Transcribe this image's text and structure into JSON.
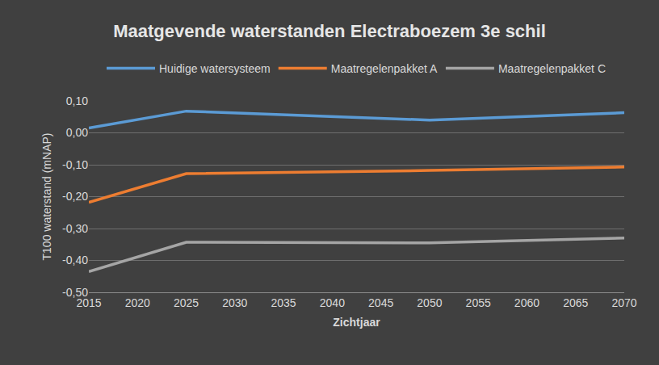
{
  "chart_data": {
    "type": "line",
    "title": "Maatgevende waterstanden Electraboezem 3e schil",
    "x_label": "Zichtjaar",
    "y_label": "T100 waterstand (mNAP)",
    "x": [
      2015,
      2025,
      2050,
      2070
    ],
    "series": [
      {
        "name": "Huidige watersysteem",
        "color": "#5b9bd5",
        "values": [
          0.015,
          0.068,
          0.04,
          0.063
        ]
      },
      {
        "name": "Maatregelenpakket A",
        "color": "#ed7d31",
        "values": [
          -0.218,
          -0.128,
          -0.118,
          -0.107
        ]
      },
      {
        "name": "Maatregelenpakket C",
        "color": "#a5a5a5",
        "values": [
          -0.435,
          -0.343,
          -0.345,
          -0.33
        ]
      }
    ],
    "xlim": [
      2015,
      2070
    ],
    "xticks": [
      2015,
      2020,
      2025,
      2030,
      2035,
      2040,
      2045,
      2050,
      2055,
      2060,
      2065,
      2070
    ],
    "ylim": [
      -0.5,
      0.1
    ],
    "yticks": [
      {
        "value": -0.5,
        "label": "-0,50"
      },
      {
        "value": -0.4,
        "label": "-0,40"
      },
      {
        "value": -0.3,
        "label": "-0,30"
      },
      {
        "value": -0.2,
        "label": "-0,20"
      },
      {
        "value": -0.1,
        "label": "-0,10"
      },
      {
        "value": 0,
        "label": "0,00"
      },
      {
        "value": 0.1,
        "label": "0,10"
      }
    ],
    "grid": true,
    "legend": "top"
  }
}
